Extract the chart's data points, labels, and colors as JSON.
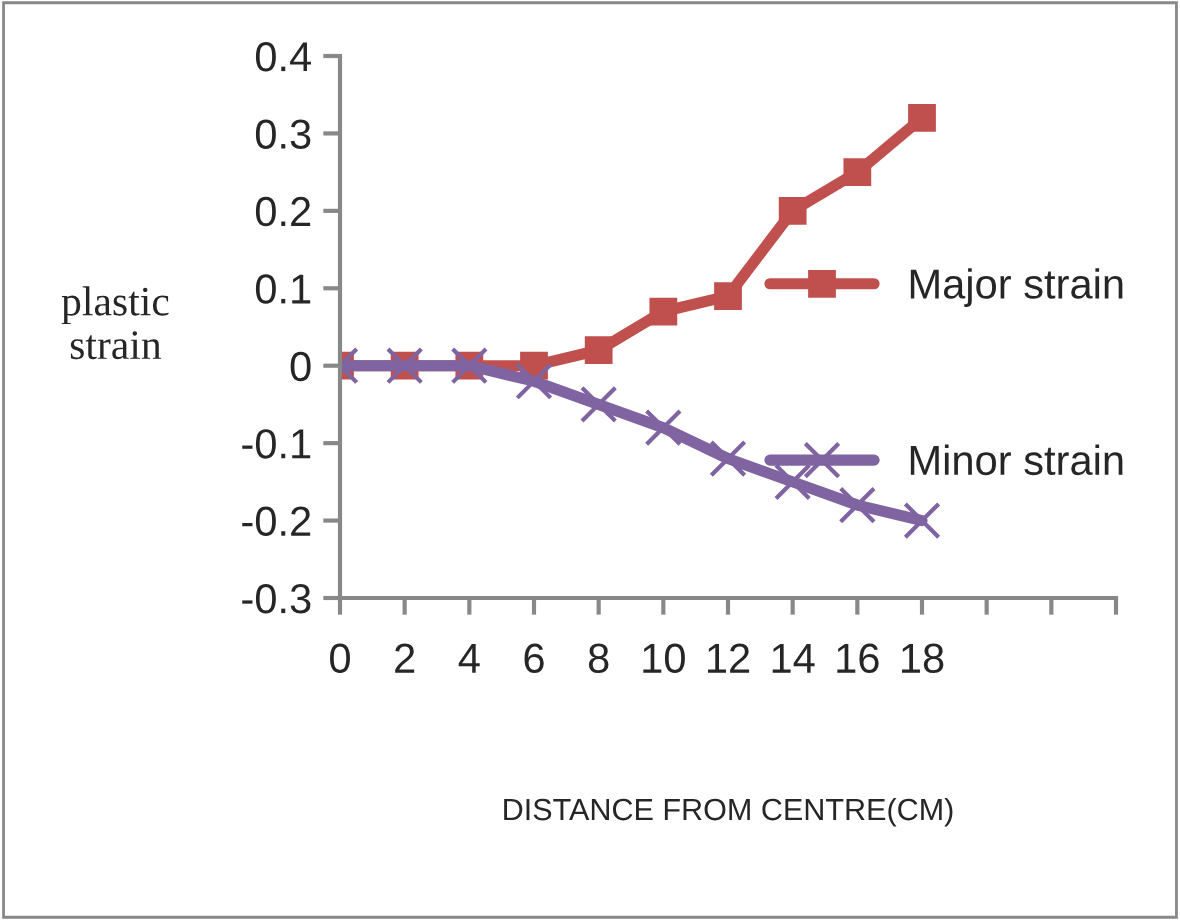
{
  "chart_data": {
    "type": "line",
    "xlabel": "DISTANCE FROM CENTRE(CM)",
    "ylabel": "plastic\nstrain",
    "categories": [
      "0",
      "2",
      "4",
      "6",
      "8",
      "10",
      "12",
      "14",
      "16",
      "18",
      null,
      null,
      null
    ],
    "series": [
      {
        "name": "Major strain",
        "color": "#c0504d",
        "marker": "square",
        "values": [
          0,
          0,
          0,
          0,
          0.02,
          0.07,
          0.09,
          0.2,
          0.25,
          0.32,
          null,
          null,
          null
        ]
      },
      {
        "name": "Minor strain",
        "color": "#8064a2",
        "marker": "cross",
        "values": [
          0,
          0,
          0,
          -0.02,
          -0.05,
          -0.08,
          -0.12,
          -0.15,
          -0.18,
          -0.2,
          null,
          null,
          null
        ]
      }
    ],
    "ylim": [
      -0.3,
      0.4
    ],
    "yticks": [
      -0.3,
      -0.2,
      -0.1,
      0,
      0.1,
      0.2,
      0.3,
      0.4
    ],
    "grid": false,
    "legend": "right",
    "line_style": "solid"
  }
}
